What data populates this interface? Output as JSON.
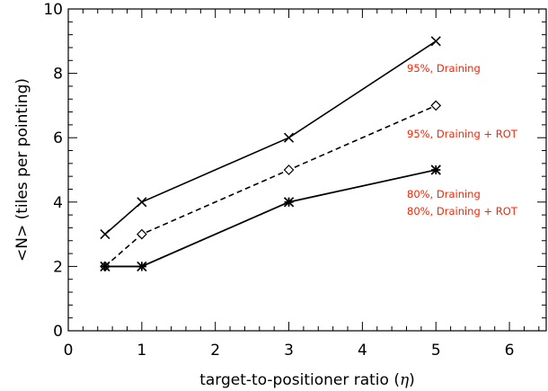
{
  "chart_data": {
    "type": "line",
    "xlabel_text": "target-to-positioner ratio (",
    "xlabel_symbol": "η",
    "xlabel_close": ")",
    "ylabel": "<N> (tiles per pointing)",
    "xlim": [
      0,
      6.5
    ],
    "ylim": [
      0,
      10
    ],
    "x_ticks": [
      "0",
      "1",
      "2",
      "3",
      "4",
      "5",
      "6"
    ],
    "y_ticks": [
      "0",
      "2",
      "4",
      "6",
      "8",
      "10"
    ],
    "grid": false,
    "annotation_color": "#ff2200",
    "series": [
      {
        "name": "95%, Draining",
        "x": [
          0.5,
          1,
          3,
          5
        ],
        "y": [
          3,
          4,
          6,
          9
        ],
        "marker": "x",
        "dash": "solid"
      },
      {
        "name": "95%, Draining + ROT",
        "x": [
          0.5,
          1,
          3,
          5
        ],
        "y": [
          2,
          3,
          5,
          7
        ],
        "marker": "diamond",
        "dash": "dashed"
      },
      {
        "name": "80%, Draining",
        "x": [
          0.5,
          1,
          3,
          5
        ],
        "y": [
          2,
          2,
          4,
          5
        ],
        "marker": "asterisk",
        "dash": "solid"
      },
      {
        "name": "80%, Draining + ROT",
        "x": [
          0.5,
          1,
          3,
          5
        ],
        "y": [
          2,
          2,
          4,
          5
        ],
        "marker": "asterisk",
        "dash": "solid"
      }
    ],
    "annotations": [
      "95%, Draining",
      "95%, Draining + ROT",
      "80%, Draining",
      "80%, Draining + ROT"
    ]
  }
}
